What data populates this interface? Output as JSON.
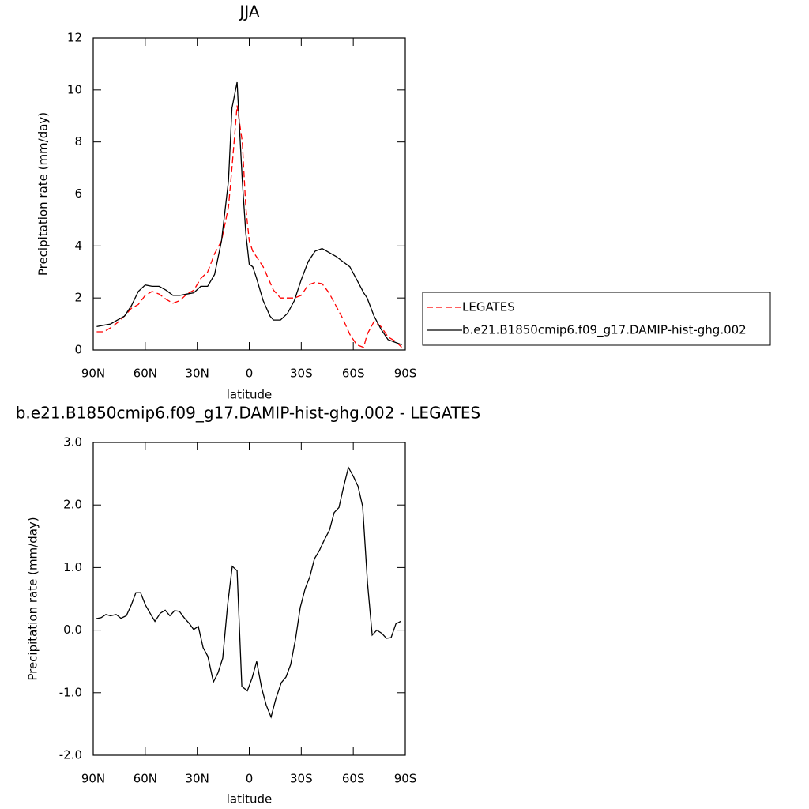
{
  "chart_data": [
    {
      "type": "line",
      "title": "JJA",
      "x_label": "latitude",
      "y_label": "Precipitation rate (mm/day)",
      "xlim": [
        90,
        -90
      ],
      "xticks": [
        {
          "value": 90,
          "label": "90N"
        },
        {
          "value": 60,
          "label": "60N"
        },
        {
          "value": 30,
          "label": "30N"
        },
        0,
        {
          "value": -30,
          "label": "30S"
        },
        {
          "value": -60,
          "label": "60S"
        },
        {
          "value": -90,
          "label": "90S"
        }
      ],
      "ylim": [
        0,
        12
      ],
      "yticks": [
        0,
        2,
        4,
        6,
        8,
        10,
        12
      ],
      "legend": "right",
      "x": [
        88,
        84,
        80,
        76,
        72,
        68,
        64,
        60,
        56,
        52,
        48,
        44,
        40,
        36,
        32,
        28,
        24,
        20,
        16,
        12,
        10,
        7,
        4,
        2,
        0,
        -2,
        -4,
        -8,
        -12,
        -14,
        -18,
        -22,
        -26,
        -30,
        -34,
        -38,
        -42,
        -46,
        -50,
        -54,
        -58,
        -62,
        -66,
        -68,
        -72,
        -76,
        -80,
        -84,
        -88
      ],
      "series": [
        {
          "name": "LEGATES",
          "color": "#ff0000",
          "dash": true,
          "values": [
            0.7,
            0.7,
            0.85,
            1.05,
            1.3,
            1.6,
            1.75,
            2.1,
            2.25,
            2.15,
            1.95,
            1.8,
            1.9,
            2.15,
            2.3,
            2.75,
            3.0,
            3.7,
            4.2,
            5.5,
            7.0,
            9.4,
            8.0,
            5.5,
            4.2,
            3.8,
            3.6,
            3.2,
            2.6,
            2.3,
            2.0,
            2.0,
            2.0,
            2.1,
            2.5,
            2.6,
            2.55,
            2.2,
            1.7,
            1.2,
            0.6,
            0.2,
            0.1,
            0.6,
            1.1,
            0.9,
            0.5,
            0.35,
            0.1
          ]
        },
        {
          "name": "b.e21.B1850cmip6.f09_g17.DAMIP-hist-ghg.002",
          "color": "#000000",
          "dash": false,
          "values": [
            0.9,
            0.95,
            1.0,
            1.15,
            1.3,
            1.7,
            2.25,
            2.5,
            2.45,
            2.45,
            2.3,
            2.1,
            2.1,
            2.15,
            2.2,
            2.45,
            2.45,
            2.9,
            4.2,
            6.5,
            9.3,
            10.3,
            6.5,
            4.5,
            3.3,
            3.2,
            2.8,
            1.9,
            1.3,
            1.15,
            1.15,
            1.4,
            1.9,
            2.7,
            3.4,
            3.8,
            3.9,
            3.75,
            3.6,
            3.4,
            3.2,
            2.7,
            2.2,
            2.0,
            1.3,
            0.8,
            0.4,
            0.3,
            0.2
          ]
        }
      ]
    },
    {
      "type": "line",
      "title": "b.e21.B1850cmip6.f09_g17.DAMIP-hist-ghg.002 - LEGATES",
      "x_label": "latitude",
      "y_label": "Precipitation rate (mm/day)",
      "xlim": [
        90,
        -90
      ],
      "xticks": [
        {
          "value": 90,
          "label": "90N"
        },
        {
          "value": 60,
          "label": "60N"
        },
        {
          "value": 30,
          "label": "30N"
        },
        0,
        {
          "value": -30,
          "label": "30S"
        },
        {
          "value": -60,
          "label": "60S"
        },
        {
          "value": -90,
          "label": "90S"
        }
      ],
      "ylim": [
        -2,
        3
      ],
      "yticks": [
        {
          "value": -2,
          "label": "-2.0"
        },
        {
          "value": -1,
          "label": "-1.0"
        },
        {
          "value": 0,
          "label": "0.0"
        },
        {
          "value": 1,
          "label": "1.0"
        },
        {
          "value": 2,
          "label": "2.0"
        },
        {
          "value": 3,
          "label": "3.0"
        }
      ],
      "color": "#000000",
      "x": [
        88.6,
        85.4,
        82.7,
        80.0,
        76.8,
        74.0,
        70.9,
        68.1,
        65.4,
        62.7,
        59.9,
        57.2,
        54.4,
        51.3,
        48.5,
        45.8,
        43.1,
        40.3,
        37.6,
        34.4,
        32.1,
        29.4,
        26.6,
        23.9,
        20.7,
        18.0,
        15.3,
        12.5,
        9.8,
        7.0,
        4.3,
        1.1,
        -1.6,
        -4.3,
        -7.1,
        -9.8,
        -12.6,
        -15.3,
        -18.5,
        -21.2,
        -23.9,
        -26.7,
        -29.4,
        -32.2,
        -34.9,
        -37.6,
        -40.4,
        -43.1,
        -46.3,
        -49.0,
        -51.7,
        -54.5,
        -57.2,
        -60.0,
        -62.7,
        -65.4,
        -68.2,
        -70.9,
        -73.6,
        -76.4,
        -79.1,
        -81.8,
        -84.6,
        -87.3
      ],
      "values": [
        0.18,
        0.2,
        0.25,
        0.23,
        0.25,
        0.19,
        0.23,
        0.4,
        0.6,
        0.6,
        0.4,
        0.27,
        0.14,
        0.27,
        0.32,
        0.23,
        0.31,
        0.3,
        0.2,
        0.1,
        0.01,
        0.06,
        -0.28,
        -0.42,
        -0.83,
        -0.68,
        -0.45,
        0.4,
        1.02,
        0.95,
        -0.9,
        -0.97,
        -0.77,
        -0.5,
        -0.92,
        -1.2,
        -1.39,
        -1.1,
        -0.84,
        -0.75,
        -0.55,
        -0.14,
        0.36,
        0.66,
        0.85,
        1.14,
        1.27,
        1.43,
        1.6,
        1.88,
        1.96,
        2.3,
        2.6,
        2.46,
        2.3,
        1.98,
        0.75,
        -0.08,
        0.0,
        -0.05,
        -0.13,
        -0.12,
        0.1,
        0.14
      ]
    }
  ]
}
